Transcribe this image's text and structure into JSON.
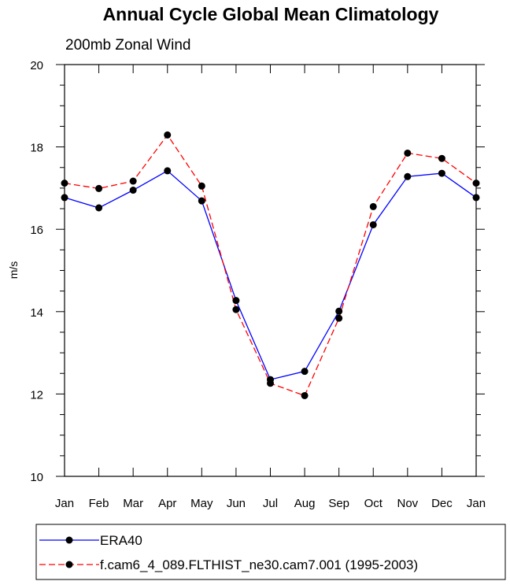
{
  "chart_data": {
    "type": "line",
    "title": "Annual Cycle Global Mean Climatology",
    "subtitle": "200mb Zonal Wind",
    "ylabel": "m/s",
    "xlabel": "",
    "categories": [
      "Jan",
      "Feb",
      "Mar",
      "Apr",
      "May",
      "Jun",
      "Jul",
      "Aug",
      "Sep",
      "Oct",
      "Nov",
      "Dec",
      "Jan"
    ],
    "ylim": [
      10,
      20
    ],
    "yticks": [
      "10",
      "12",
      "14",
      "16",
      "18",
      "20"
    ],
    "grid": false,
    "legend_placement": "bottom",
    "series": [
      {
        "name": "ERA40",
        "color": "#0000ff",
        "style": "solid",
        "values": [
          16.77,
          16.52,
          16.95,
          17.42,
          16.69,
          14.27,
          12.35,
          12.55,
          14.01,
          16.11,
          17.28,
          17.36,
          16.77
        ]
      },
      {
        "name": "f.cam6_4_089.FLTHIST_ne30.cam7.001 (1995-2003)",
        "color": "#ff0000",
        "style": "dashed",
        "values": [
          17.12,
          16.99,
          17.17,
          18.29,
          17.05,
          14.05,
          12.26,
          11.96,
          13.84,
          16.55,
          17.85,
          17.72,
          17.12
        ]
      }
    ]
  }
}
